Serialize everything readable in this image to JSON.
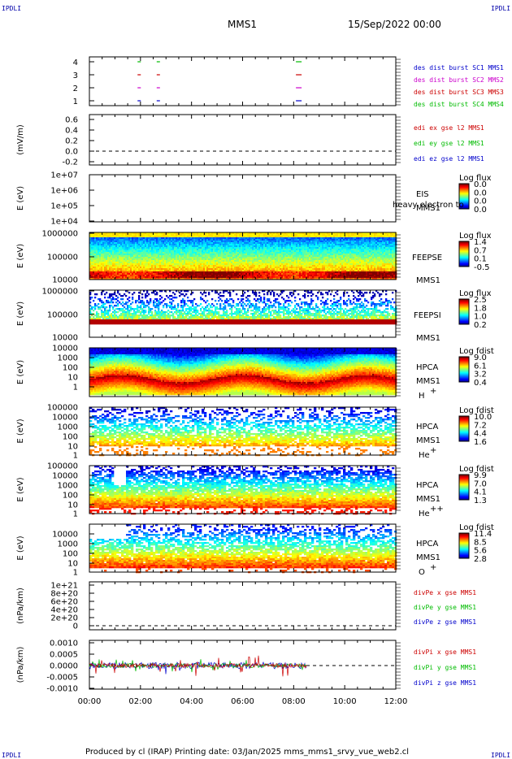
{
  "header": {
    "corner": "IPDLI",
    "spacecraft": "MMS1",
    "date": "15/Sep/2022 00:00"
  },
  "footer": {
    "text": "Produced by cl (IRAP)   Printing date: 03/Jan/2025   mms_mms1_srvy_vue_web2.cl"
  },
  "chart_data": [
    {
      "type": "scatter",
      "name": "burst",
      "yticks": [
        "4",
        "3",
        "2",
        "1"
      ],
      "legend": [
        {
          "label": "des dist burst SC1 MMS1",
          "color": "#0000cc"
        },
        {
          "label": "des dist burst SC2 MMS2",
          "color": "#cc00cc"
        },
        {
          "label": "des dist burst SC3 MMS3",
          "color": "#cc0000"
        },
        {
          "label": "des dist burst SC4 MMS4",
          "color": "#00bb00"
        }
      ],
      "bursts_hours": [
        1.95,
        2.7,
        8.2
      ]
    },
    {
      "type": "line",
      "ylabel": "(mV/m)",
      "yticks": [
        "0.6",
        "0.4",
        "0.2",
        "0.0",
        "-0.2"
      ],
      "legend": [
        {
          "label": "edi ex gse l2 MMS1",
          "color": "#cc0000"
        },
        {
          "label": "edi ey gse l2 MMS1",
          "color": "#00bb00"
        },
        {
          "label": "edi ez gse l2 MMS1",
          "color": "#0000cc"
        }
      ]
    },
    {
      "type": "heatmap",
      "ylabel": "E (eV)",
      "yticks": [
        "1e+07",
        "1e+06",
        "1e+05",
        "1e+04"
      ],
      "instrument": "EIS",
      "sc": "MMS1",
      "overlay": "heavy electron to",
      "cbar_title": "Log flux",
      "cbar_ticks": [
        "0.0",
        "0.0",
        "0.0",
        "0.0"
      ]
    },
    {
      "type": "heatmap",
      "ylabel": "E (eV)",
      "yticks": [
        "1000000",
        "100000",
        "10000"
      ],
      "instrument": "FEEPSE",
      "sc": "MMS1",
      "cbar_title": "Log flux",
      "cbar_ticks": [
        "1.4",
        "0.7",
        "0.1",
        "-0.5"
      ]
    },
    {
      "type": "heatmap",
      "ylabel": "E (eV)",
      "yticks": [
        "1000000",
        "100000",
        "10000"
      ],
      "instrument": "FEEPSI",
      "sc": "MMS1",
      "cbar_title": "Log flux",
      "cbar_ticks": [
        "2.5",
        "1.8",
        "1.0",
        "0.2"
      ]
    },
    {
      "type": "heatmap",
      "ylabel": "E (eV)",
      "yticks": [
        "10000",
        "1000",
        "100",
        "10",
        "1"
      ],
      "instrument": "HPCA",
      "sc": "MMS1",
      "species": "H",
      "charge": "+",
      "cbar_title": "Log fdist",
      "cbar_ticks": [
        "9.0",
        "6.1",
        "3.2",
        "0.4"
      ]
    },
    {
      "type": "heatmap",
      "ylabel": "E (eV)",
      "yticks": [
        "100000",
        "10000",
        "1000",
        "100",
        "10",
        "1"
      ],
      "instrument": "HPCA",
      "sc": "MMS1",
      "species": "He",
      "charge": "+",
      "cbar_title": "Log fdist",
      "cbar_ticks": [
        "10.0",
        "7.2",
        "4.4",
        "1.6"
      ]
    },
    {
      "type": "heatmap",
      "ylabel": "E (eV)",
      "yticks": [
        "100000",
        "10000",
        "1000",
        "100",
        "10",
        "1"
      ],
      "instrument": "HPCA",
      "sc": "MMS1",
      "species": "He",
      "charge": "++",
      "cbar_title": "Log fdist",
      "cbar_ticks": [
        "9.9",
        "7.0",
        "4.1",
        "1.3"
      ]
    },
    {
      "type": "heatmap",
      "ylabel": "E (eV)",
      "yticks": [
        "10000",
        "1000",
        "100",
        "10",
        "1"
      ],
      "instrument": "HPCA",
      "sc": "MMS1",
      "species": "O",
      "charge": "+",
      "cbar_title": "Log fdist",
      "cbar_ticks": [
        "11.4",
        "8.5",
        "5.6",
        "2.8"
      ]
    },
    {
      "type": "line",
      "ylabel": "(nPa/km)",
      "yticks": [
        "1e+21",
        "8e+20",
        "6e+20",
        "4e+20",
        "2e+20",
        "0"
      ],
      "legend": [
        {
          "label": "divPe x gse MMS1",
          "color": "#cc0000"
        },
        {
          "label": "divPe y gse MMS1",
          "color": "#00bb00"
        },
        {
          "label": "divPe z gse MMS1",
          "color": "#0000cc"
        }
      ]
    },
    {
      "type": "line",
      "ylabel": "(nPa/km)",
      "yticks": [
        "0.0010",
        "0.0005",
        "0.0000",
        "-0.0005",
        "-0.0010"
      ],
      "legend": [
        {
          "label": "divPi x gse MMS1",
          "color": "#cc0000"
        },
        {
          "label": "divPi y gse MMS1",
          "color": "#00bb00"
        },
        {
          "label": "divPi z gse MMS1",
          "color": "#0000cc"
        }
      ],
      "data_end_hour": 8.5
    }
  ],
  "xaxis": {
    "ticks": [
      "00:00",
      "02:00",
      "04:00",
      "06:00",
      "08:00",
      "10:00",
      "12:00"
    ],
    "range_hours": [
      0,
      12
    ]
  }
}
